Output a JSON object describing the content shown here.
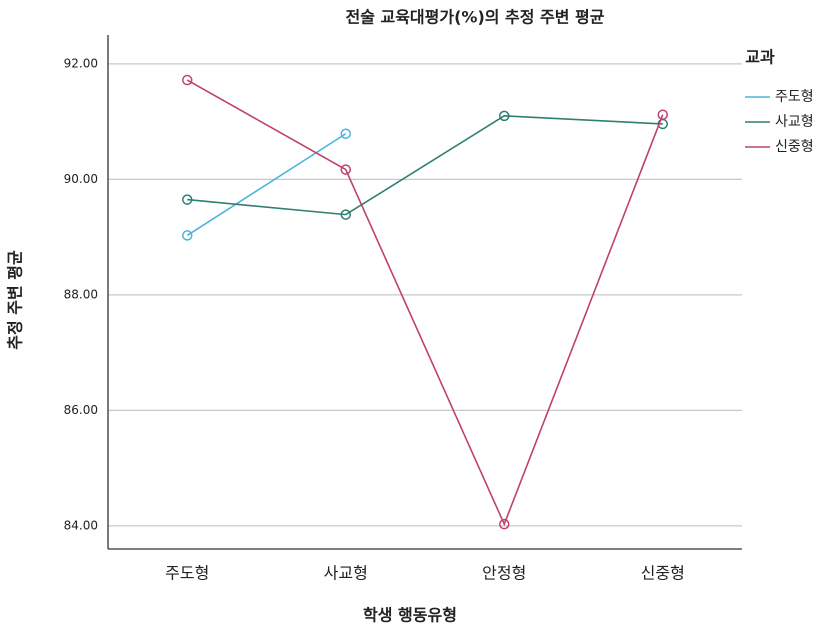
{
  "chart_data": {
    "type": "line",
    "title": "전술 교육대평가(%)의 추정 주변 평균",
    "x_label": "학생 행동유형",
    "y_label": "추정 주변 평균",
    "legend_title": "교과",
    "categories": [
      "주도형",
      "사교형",
      "안정형",
      "신중형"
    ],
    "series": [
      {
        "name": "주도형",
        "color": "#4bb3df",
        "values": [
          89.03,
          90.79,
          null,
          null
        ]
      },
      {
        "name": "사교형",
        "color": "#2f7f73",
        "values": [
          89.65,
          89.39,
          91.1,
          90.96
        ]
      },
      {
        "name": "신중형",
        "color": "#c0406e",
        "values": [
          91.72,
          90.17,
          84.03,
          91.12
        ]
      }
    ],
    "ylim": [
      83.6,
      92.5
    ],
    "yticks": [
      {
        "value": 84,
        "label": "84.00"
      },
      {
        "value": 86,
        "label": "86.00"
      },
      {
        "value": 88,
        "label": "88.00"
      },
      {
        "value": 90,
        "label": "90.00"
      },
      {
        "value": 92,
        "label": "92.00"
      }
    ],
    "grid": true,
    "legend": "right"
  }
}
